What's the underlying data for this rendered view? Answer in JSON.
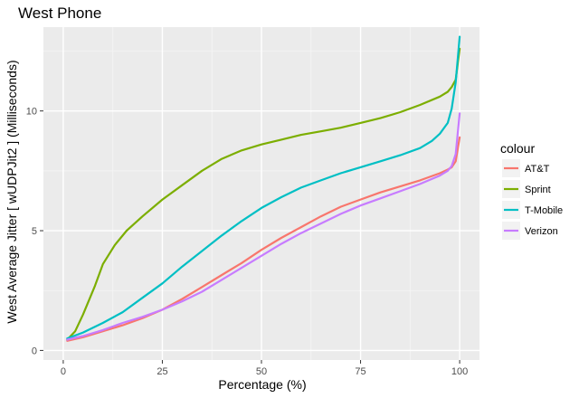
{
  "chart_data": {
    "type": "line",
    "title": "West Phone",
    "xlabel": "Percentage (%)",
    "ylabel": "West Average Jitter [ wUDPJit2 ] (Milliseconds)",
    "xlim": [
      -5,
      105
    ],
    "ylim": [
      -0.4,
      13.5
    ],
    "x_ticks": [
      0,
      25,
      50,
      75,
      100
    ],
    "x_tick_labels": [
      "0",
      "25",
      "50",
      "75",
      "100"
    ],
    "y_ticks": [
      0,
      5,
      10
    ],
    "y_tick_labels": [
      "0",
      "5",
      "10"
    ],
    "grid": true,
    "legend": {
      "title": "colour",
      "position": "right"
    },
    "series": [
      {
        "name": "AT&T",
        "color": "#F8766D",
        "points": [
          [
            1,
            0.4
          ],
          [
            5,
            0.55
          ],
          [
            10,
            0.8
          ],
          [
            15,
            1.05
          ],
          [
            20,
            1.35
          ],
          [
            25,
            1.7
          ],
          [
            30,
            2.15
          ],
          [
            35,
            2.65
          ],
          [
            40,
            3.15
          ],
          [
            45,
            3.65
          ],
          [
            50,
            4.2
          ],
          [
            55,
            4.7
          ],
          [
            60,
            5.15
          ],
          [
            65,
            5.6
          ],
          [
            70,
            6.0
          ],
          [
            75,
            6.3
          ],
          [
            80,
            6.6
          ],
          [
            85,
            6.85
          ],
          [
            90,
            7.1
          ],
          [
            95,
            7.4
          ],
          [
            97,
            7.55
          ],
          [
            98,
            7.65
          ],
          [
            99,
            7.9
          ],
          [
            100,
            8.9
          ]
        ]
      },
      {
        "name": "Sprint",
        "color": "#7CAE00",
        "points": [
          [
            1,
            0.45
          ],
          [
            3,
            0.8
          ],
          [
            5,
            1.5
          ],
          [
            8,
            2.7
          ],
          [
            10,
            3.6
          ],
          [
            13,
            4.4
          ],
          [
            16,
            5.0
          ],
          [
            20,
            5.6
          ],
          [
            25,
            6.3
          ],
          [
            30,
            6.9
          ],
          [
            35,
            7.5
          ],
          [
            40,
            8.0
          ],
          [
            45,
            8.35
          ],
          [
            50,
            8.6
          ],
          [
            55,
            8.8
          ],
          [
            60,
            9.0
          ],
          [
            65,
            9.15
          ],
          [
            70,
            9.3
          ],
          [
            75,
            9.5
          ],
          [
            80,
            9.7
          ],
          [
            85,
            9.95
          ],
          [
            90,
            10.25
          ],
          [
            95,
            10.6
          ],
          [
            97,
            10.8
          ],
          [
            98,
            11.0
          ],
          [
            99,
            11.3
          ],
          [
            100,
            12.6
          ]
        ]
      },
      {
        "name": "T-Mobile",
        "color": "#00BFC4",
        "points": [
          [
            1,
            0.5
          ],
          [
            5,
            0.75
          ],
          [
            10,
            1.15
          ],
          [
            15,
            1.6
          ],
          [
            20,
            2.2
          ],
          [
            25,
            2.8
          ],
          [
            30,
            3.5
          ],
          [
            35,
            4.15
          ],
          [
            40,
            4.8
          ],
          [
            45,
            5.4
          ],
          [
            50,
            5.95
          ],
          [
            55,
            6.4
          ],
          [
            60,
            6.8
          ],
          [
            65,
            7.1
          ],
          [
            70,
            7.4
          ],
          [
            75,
            7.65
          ],
          [
            80,
            7.9
          ],
          [
            85,
            8.15
          ],
          [
            90,
            8.45
          ],
          [
            93,
            8.75
          ],
          [
            95,
            9.05
          ],
          [
            97,
            9.5
          ],
          [
            98,
            10.1
          ],
          [
            99,
            11.2
          ],
          [
            100,
            13.1
          ]
        ]
      },
      {
        "name": "Verizon",
        "color": "#C77CFF",
        "points": [
          [
            1,
            0.45
          ],
          [
            5,
            0.6
          ],
          [
            10,
            0.85
          ],
          [
            15,
            1.15
          ],
          [
            20,
            1.4
          ],
          [
            25,
            1.7
          ],
          [
            30,
            2.05
          ],
          [
            35,
            2.45
          ],
          [
            40,
            2.95
          ],
          [
            45,
            3.45
          ],
          [
            50,
            3.95
          ],
          [
            55,
            4.45
          ],
          [
            60,
            4.9
          ],
          [
            65,
            5.3
          ],
          [
            70,
            5.7
          ],
          [
            75,
            6.05
          ],
          [
            80,
            6.35
          ],
          [
            85,
            6.65
          ],
          [
            90,
            6.95
          ],
          [
            95,
            7.3
          ],
          [
            97,
            7.5
          ],
          [
            98,
            7.7
          ],
          [
            99,
            8.2
          ],
          [
            100,
            9.9
          ]
        ]
      }
    ]
  }
}
